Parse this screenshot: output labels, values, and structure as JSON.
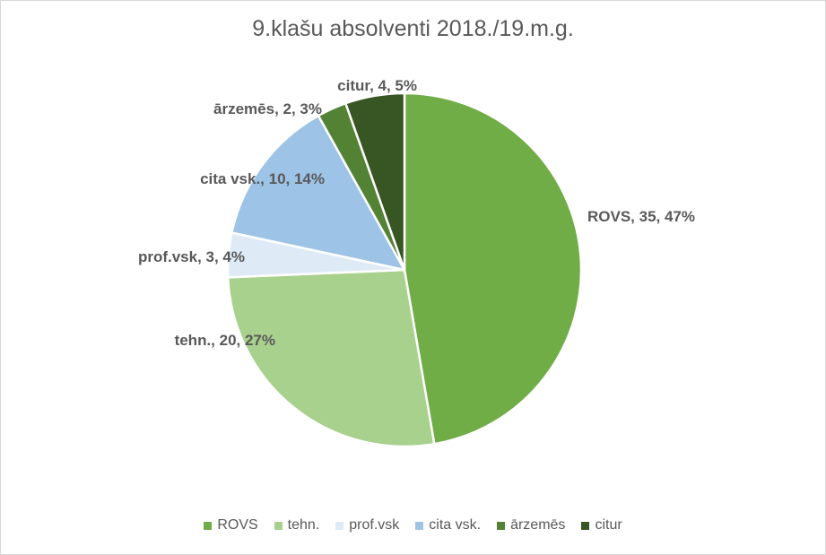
{
  "chart_data": {
    "type": "pie",
    "title": "9.klašu absolventi 2018./19.m.g.",
    "slices": [
      {
        "name": "ROVS",
        "value": 35,
        "percent": "47%",
        "label": "ROVS, 35, 47%",
        "color": "#70ad47"
      },
      {
        "name": "tehn.",
        "value": 20,
        "percent": "27%",
        "label": "tehn., 20, 27%",
        "color": "#a9d18e"
      },
      {
        "name": "prof.vsk",
        "value": 3,
        "percent": "4%",
        "label": "prof.vsk, 3, 4%",
        "color": "#deebf7"
      },
      {
        "name": "cita vsk.",
        "value": 10,
        "percent": "14%",
        "label": "cita vsk., 10, 14%",
        "color": "#9dc3e6"
      },
      {
        "name": "ārzemēs",
        "value": 2,
        "percent": "3%",
        "label": "ārzemēs, 2, 3%",
        "color": "#548235"
      },
      {
        "name": "citur",
        "value": 4,
        "percent": "5%",
        "label": "citur, 4, 5%",
        "color": "#375623"
      }
    ],
    "legend_position": "bottom",
    "label_color": "#595959"
  }
}
